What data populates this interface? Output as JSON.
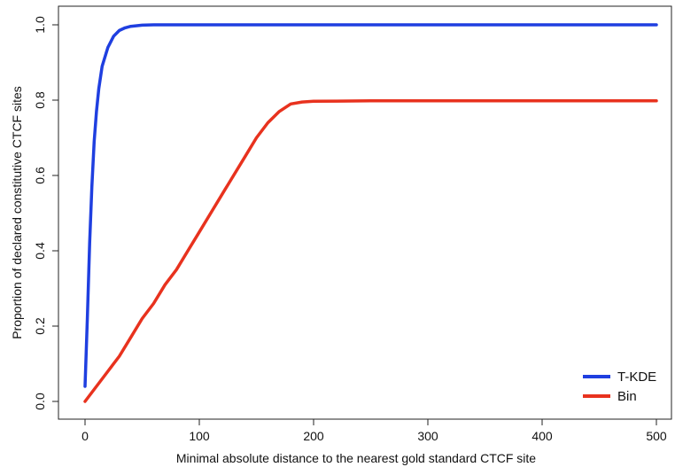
{
  "chart_data": {
    "type": "line",
    "title": "",
    "xlabel": "Minimal absolute distance to the nearest gold standard CTCF site",
    "ylabel": "Proportion of declared constitutive CTCF sites",
    "xlim": [
      0,
      500
    ],
    "ylim": [
      0.0,
      1.0
    ],
    "x_ticks": [
      0,
      100,
      200,
      300,
      400,
      500
    ],
    "y_ticks": [
      0.0,
      0.2,
      0.4,
      0.6,
      0.8,
      1.0
    ],
    "x_tick_labels": [
      "0",
      "100",
      "200",
      "300",
      "400",
      "500"
    ],
    "y_tick_labels": [
      "0.0",
      "0.2",
      "0.4",
      "0.6",
      "0.8",
      "1.0"
    ],
    "grid": false,
    "legend_position": "bottom-right",
    "series": [
      {
        "name": "T-KDE",
        "color": "#1f3fe0",
        "x": [
          0,
          2,
          4,
          6,
          8,
          10,
          12,
          15,
          20,
          25,
          30,
          35,
          40,
          50,
          60,
          80,
          100,
          200,
          300,
          400,
          500
        ],
        "y": [
          0.04,
          0.22,
          0.42,
          0.57,
          0.69,
          0.77,
          0.83,
          0.89,
          0.94,
          0.97,
          0.985,
          0.992,
          0.996,
          0.999,
          1.0,
          1.0,
          1.0,
          1.0,
          1.0,
          1.0,
          1.0
        ]
      },
      {
        "name": "Bin",
        "color": "#e8321e",
        "x": [
          0,
          10,
          20,
          30,
          40,
          50,
          60,
          70,
          80,
          90,
          100,
          110,
          120,
          130,
          140,
          150,
          160,
          170,
          180,
          190,
          200,
          250,
          300,
          400,
          500
        ],
        "y": [
          0.0,
          0.04,
          0.08,
          0.12,
          0.17,
          0.22,
          0.26,
          0.31,
          0.35,
          0.4,
          0.45,
          0.5,
          0.55,
          0.6,
          0.65,
          0.7,
          0.74,
          0.77,
          0.79,
          0.795,
          0.797,
          0.798,
          0.798,
          0.798,
          0.798
        ]
      }
    ]
  }
}
